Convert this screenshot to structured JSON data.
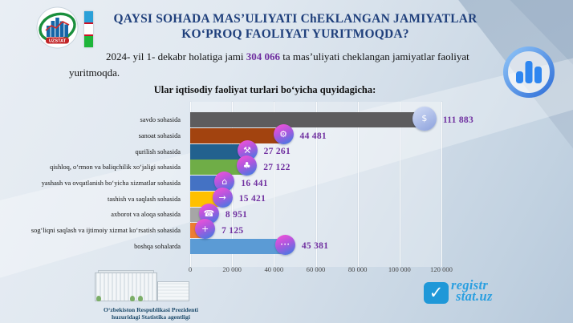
{
  "header": {
    "title_line1": "QAYSI SOHADA MAS’ULIYATI ChEKLANGAN JAMIYATLAR",
    "title_line2": "KO‘PROQ FAOLIYAT YURITMOQDA?",
    "logo_text": "UZSTAT"
  },
  "intro": {
    "text_before": "2024- yil 1- dekabr holatiga jami ",
    "highlight": "304 066",
    "text_after": " ta mas’uliyati cheklangan jamiyatlar faoliyat yuritmoqda.",
    "highlight_color": "#7030a0"
  },
  "chart_data": {
    "type": "bar",
    "orientation": "horizontal",
    "title": "Ular iqtisodiy faoliyat turlari bo‘yicha quyidagicha:",
    "categories": [
      "savdo sohasida",
      "sanoat sohasida",
      "qurilish  sohasida",
      "qishloq,  o‘rmon va baliqchilik xo‘jaligi  sohasida",
      "yashash va ovqatlanish bo‘yicha xizmatlar  sohasida",
      "tashish va saqlash sohasida",
      "axborot va aloqa sohasida",
      "sog‘liqni  saqlash va ijtimoiy xizmat ko‘rsatish sohasida",
      "boshqa sohalarda"
    ],
    "values": [
      111883,
      44481,
      27261,
      27122,
      16441,
      15421,
      8951,
      7125,
      45381
    ],
    "value_labels": [
      "111 883",
      "44 481",
      "27 261",
      "27 122",
      "16 441",
      "15 421",
      "8 951",
      "7 125",
      "45 381"
    ],
    "bar_colors": [
      "#5d5c5e",
      "#a2430f",
      "#22618e",
      "#6fad47",
      "#4472c4",
      "#ffc000",
      "#a6a6a6",
      "#ed7d31",
      "#5b9bd5"
    ],
    "icons": [
      {
        "name": "trade-icon",
        "glyph": "$"
      },
      {
        "name": "industry-icon",
        "glyph": "⚙"
      },
      {
        "name": "construction-icon",
        "glyph": "⚒"
      },
      {
        "name": "agriculture-icon",
        "glyph": "♣"
      },
      {
        "name": "accommodation-food-icon",
        "glyph": "⌂"
      },
      {
        "name": "transport-storage-icon",
        "glyph": "→"
      },
      {
        "name": "ict-icon",
        "glyph": "☎"
      },
      {
        "name": "health-icon",
        "glyph": "+"
      },
      {
        "name": "other-sectors-icon",
        "glyph": "•••"
      }
    ],
    "x_ticks": [
      "0",
      "20 000",
      "40 000",
      "60 000",
      "80 000",
      "100 000",
      "120 000"
    ],
    "xlim": [
      0,
      120000
    ],
    "value_color": "#7030a0",
    "grid": true,
    "legend": false
  },
  "footer": {
    "agency_line1": "O‘zbekiston  Respublikasi  Prezidenti",
    "agency_line2": "huzuridagi  Statistika agentligi",
    "brand_line1": "registr",
    "brand_line2": "stat.uz",
    "brand_check": "✓"
  }
}
